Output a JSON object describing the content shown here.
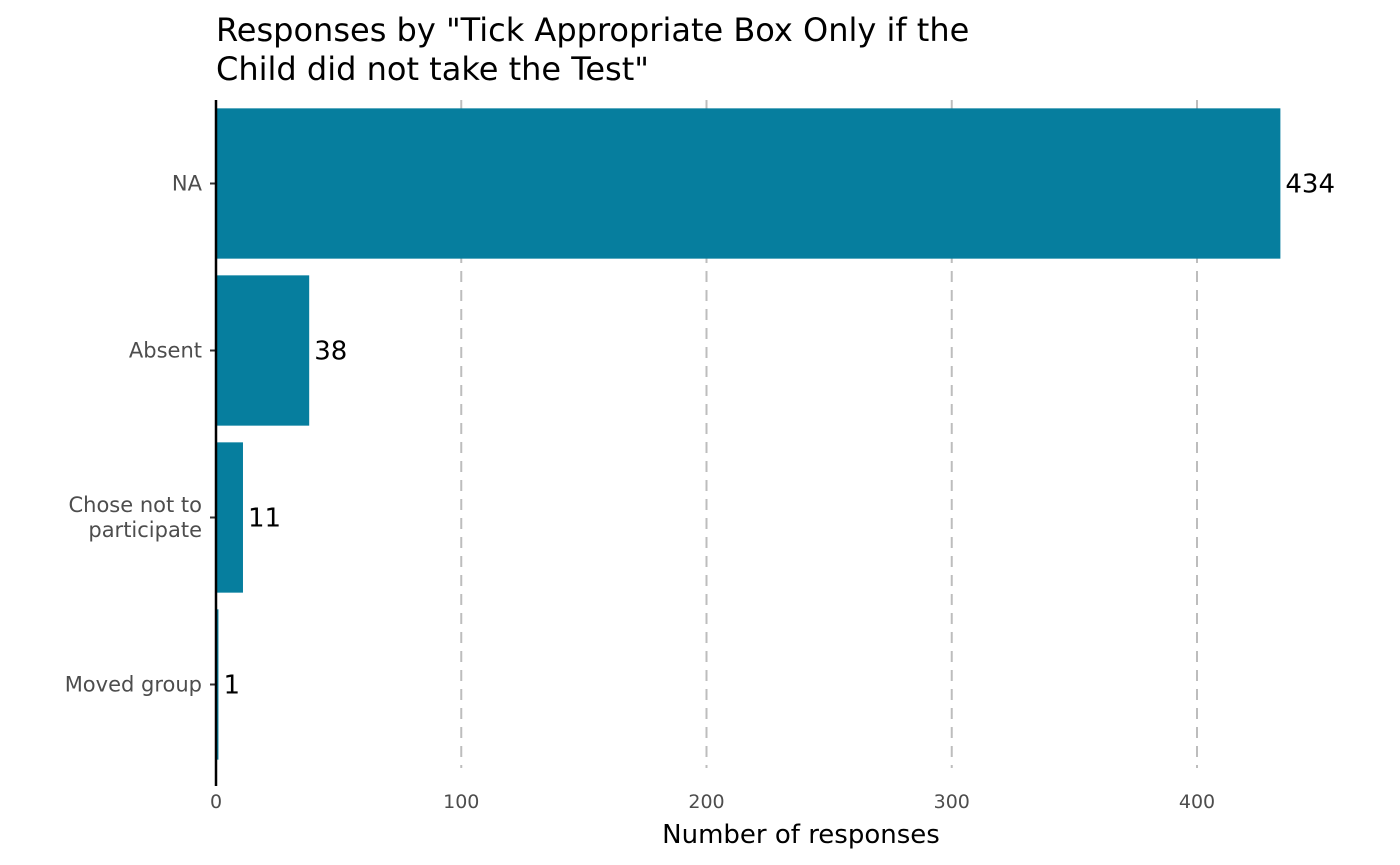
{
  "chart_data": {
    "type": "bar",
    "orientation": "horizontal",
    "title_lines": [
      "Responses by \"Tick Appropriate Box Only if the",
      "Child did not take the Test\""
    ],
    "categories": [
      {
        "lines": [
          "NA"
        ]
      },
      {
        "lines": [
          "Absent"
        ]
      },
      {
        "lines": [
          "Chose not to",
          "participate"
        ]
      },
      {
        "lines": [
          "Moved group"
        ]
      }
    ],
    "values": [
      434,
      38,
      11,
      1
    ],
    "data_labels": [
      "434",
      "38",
      "11",
      "1"
    ],
    "xlabel": "Number of responses",
    "ylabel": "",
    "xlim": [
      0,
      434
    ],
    "x_ticks": [
      0,
      100,
      200,
      300,
      400
    ],
    "x_tick_labels": [
      "0",
      "100",
      "200",
      "300",
      "400"
    ],
    "grid": "vertical dashed",
    "bar_color": "#067e9e"
  }
}
